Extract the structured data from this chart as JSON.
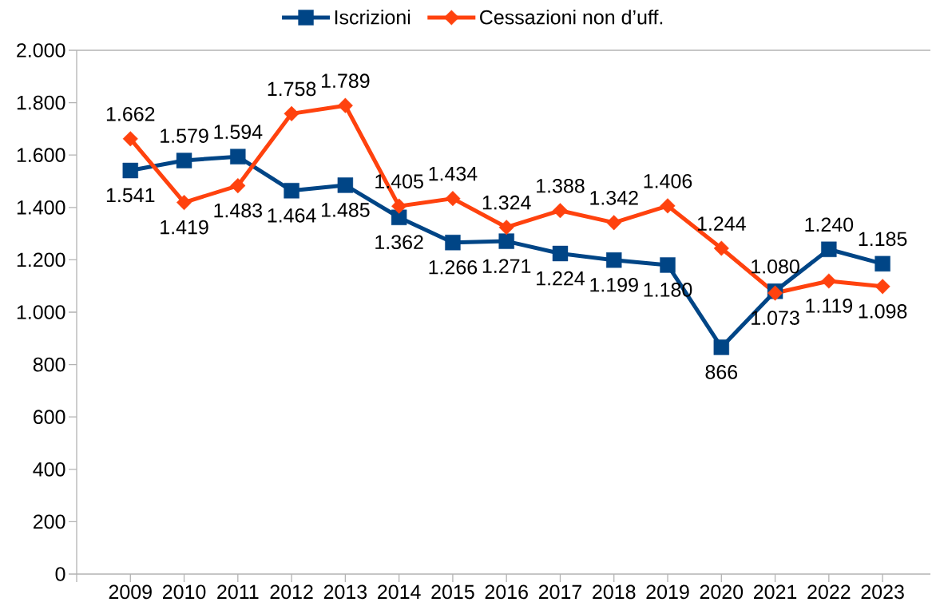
{
  "chart_data": {
    "type": "line",
    "categories": [
      "2009",
      "2010",
      "2011",
      "2012",
      "2013",
      "2014",
      "2015",
      "2016",
      "2017",
      "2018",
      "2019",
      "2020",
      "2021",
      "2022",
      "2023"
    ],
    "series": [
      {
        "name": "Iscrizioni",
        "color": "#004586",
        "marker": "square",
        "values": [
          1541,
          1579,
          1594,
          1464,
          1485,
          1362,
          1266,
          1271,
          1224,
          1199,
          1180,
          866,
          1080,
          1240,
          1185
        ],
        "value_labels": [
          "1.541",
          "1.579",
          "1.594",
          "1.464",
          "1.485",
          "1.362",
          "1.266",
          "1.271",
          "1.224",
          "1.199",
          "1.180",
          "866",
          "1.080",
          "1.240",
          "1.185"
        ]
      },
      {
        "name": "Cessazioni non d’uff.",
        "color": "#ff420e",
        "marker": "diamond",
        "values": [
          1662,
          1419,
          1483,
          1758,
          1789,
          1405,
          1434,
          1324,
          1388,
          1342,
          1406,
          1244,
          1073,
          1119,
          1098
        ],
        "value_labels": [
          "1.662",
          "1.419",
          "1.483",
          "1.758",
          "1.789",
          "1.405",
          "1.434",
          "1.324",
          "1.388",
          "1.342",
          "1.406",
          "1.244",
          "1.073",
          "1.119",
          "1.098"
        ]
      }
    ],
    "ylim": [
      0,
      2000
    ],
    "yticks": [
      0,
      200,
      400,
      600,
      800,
      {
        "value": 1000,
        "label": "1.000"
      },
      {
        "value": 1200,
        "label": "1.200"
      },
      {
        "value": 1400,
        "label": "1.400"
      },
      {
        "value": 1600,
        "label": "1.600"
      },
      {
        "value": 1800,
        "label": "1.800"
      },
      {
        "value": 2000,
        "label": "2.000"
      }
    ],
    "legend": "top",
    "line_style": "solid"
  }
}
